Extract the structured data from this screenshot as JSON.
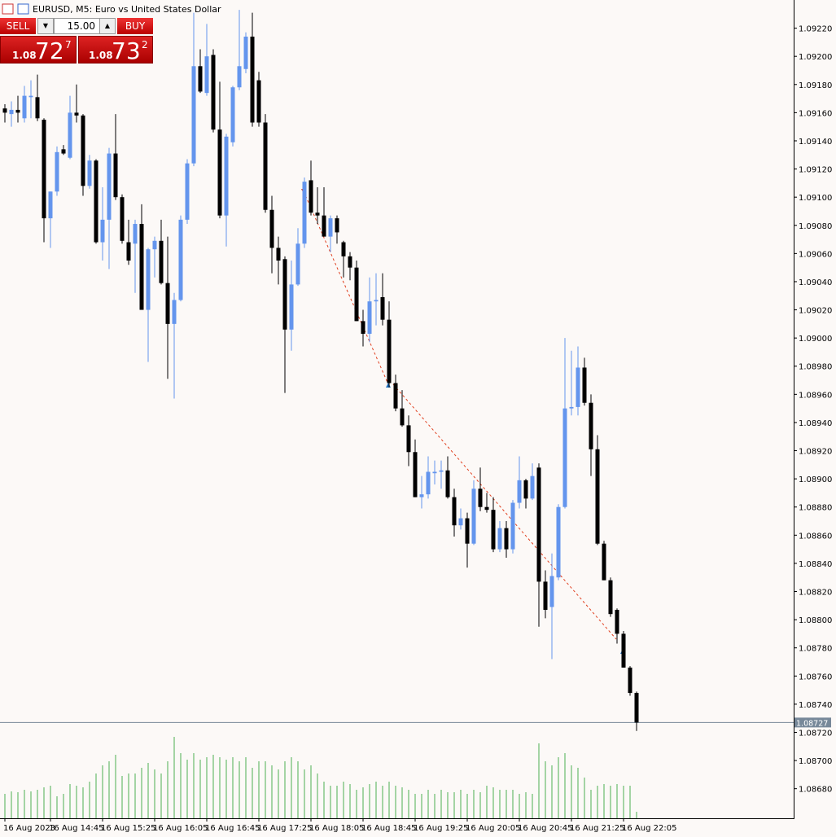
{
  "chart_data": {
    "type": "candlestick",
    "title": "EURUSD, M5:  Euro vs United States Dollar",
    "trade_panel": {
      "sell_label": "SELL",
      "buy_label": "BUY",
      "volume": "15.00",
      "sell_price": {
        "big": "1.08",
        "main": "72",
        "sup": "7"
      },
      "buy_price": {
        "big": "1.08",
        "main": "73",
        "sup": "2"
      }
    },
    "categories": [
      "16 Aug 2023",
      null,
      null,
      null,
      null,
      null,
      null,
      "16 Aug 14:45",
      null,
      null,
      null,
      null,
      null,
      null,
      null,
      "16 Aug 15:25",
      null,
      null,
      null,
      null,
      null,
      null,
      null,
      "16 Aug 16:05",
      null,
      null,
      null,
      null,
      null,
      null,
      null,
      "16 Aug 16:45",
      null,
      null,
      null,
      null,
      null,
      null,
      null,
      "16 Aug 17:25",
      null,
      null,
      null,
      null,
      null,
      null,
      null,
      "16 Aug 18:05",
      null,
      null,
      null,
      null,
      null,
      null,
      null,
      "16 Aug 18:45",
      null,
      null,
      null,
      null,
      null,
      null,
      null,
      "16 Aug 19:25",
      null,
      null,
      null,
      null,
      null,
      null,
      null,
      "16 Aug 20:05",
      null,
      null,
      null,
      null,
      null,
      null,
      null,
      "16 Aug 20:45",
      null,
      null,
      null,
      null,
      null,
      null,
      null,
      "16 Aug 21:25",
      null,
      null,
      null,
      null,
      null,
      null,
      null,
      "16 Aug 22:05",
      null,
      null
    ],
    "open": [
      1.09163,
      1.09159,
      1.09162,
      1.09156,
      1.09171,
      1.09171,
      1.09155,
      1.09085,
      1.09104,
      1.09134,
      1.09128,
      1.0916,
      1.09158,
      1.09108,
      1.09126,
      1.09068,
      1.09084,
      1.09131,
      1.091,
      1.09068,
      1.09067,
      1.09081,
      1.0902,
      1.09063,
      1.09069,
      1.09039,
      1.0901,
      1.09027,
      1.09084,
      1.09124,
      1.09193,
      1.09174,
      1.09201,
      1.09148,
      1.09087,
      1.09139,
      1.09178,
      1.09191,
      1.09214,
      1.09183,
      1.09153,
      1.09091,
      1.09064,
      1.09056,
      1.09006,
      1.09038,
      1.09067,
      1.09112,
      1.09089,
      1.09087,
      1.09072,
      1.09085,
      1.09068,
      1.09058,
      1.0905,
      1.09012,
      1.09003,
      1.09026,
      1.09029,
      1.09013,
      1.08968,
      1.0895,
      1.08938,
      1.08919,
      1.08887,
      1.08889,
      1.08904,
      1.08905,
      1.08906,
      1.08887,
      1.08867,
      1.08872,
      1.08854,
      1.08893,
      1.0888,
      1.08878,
      1.0885,
      1.08865,
      1.0885,
      1.08883,
      1.08899,
      1.08886,
      1.08908,
      1.08827,
      1.08809,
      1.0883,
      1.0888,
      1.0895,
      1.08951,
      1.08979,
      1.08954,
      1.08921,
      1.08854,
      1.08828,
      1.08807,
      1.0879,
      1.08766,
      1.08748
    ],
    "high": [
      1.09166,
      1.09168,
      1.09172,
      1.09179,
      1.09183,
      1.09187,
      1.09156,
      1.09104,
      1.09136,
      1.09137,
      1.09172,
      1.0918,
      1.09159,
      1.0913,
      1.09127,
      1.09107,
      1.09135,
      1.09159,
      1.09102,
      1.09084,
      1.09084,
      1.09095,
      1.09064,
      1.09072,
      1.09084,
      1.09072,
      1.09032,
      1.09087,
      1.09127,
      1.09231,
      1.09205,
      1.09223,
      1.09205,
      1.09182,
      1.09145,
      1.09179,
      1.09233,
      1.09217,
      1.09231,
      1.09189,
      1.09159,
      1.09101,
      1.09072,
      1.09058,
      1.09055,
      1.09078,
      1.09114,
      1.09126,
      1.09107,
      1.09107,
      1.09087,
      1.09087,
      1.09069,
      1.09061,
      1.09055,
      1.0902,
      1.09043,
      1.09046,
      1.09046,
      1.09026,
      1.08974,
      1.08963,
      1.08945,
      1.08928,
      1.08902,
      1.08916,
      1.08913,
      1.08913,
      1.08916,
      1.08893,
      1.08879,
      1.08876,
      1.08899,
      1.08908,
      1.0889,
      1.08887,
      1.0887,
      1.0887,
      1.08885,
      1.08916,
      1.089,
      1.08911,
      1.08911,
      1.08835,
      1.08847,
      1.08882,
      1.09,
      1.08991,
      1.08994,
      1.08986,
      1.0896,
      1.08931,
      1.08856,
      1.0883,
      1.08808,
      1.08792,
      1.08767,
      1.08749
    ],
    "low": [
      1.09153,
      1.0915,
      1.09153,
      1.09153,
      1.09156,
      1.09154,
      1.09068,
      1.09064,
      1.09101,
      1.0913,
      1.09127,
      1.09153,
      1.09101,
      1.09106,
      1.09067,
      1.09055,
      1.09049,
      1.09098,
      1.09067,
      1.09052,
      1.09032,
      1.0902,
      1.08983,
      1.09043,
      1.09038,
      1.08971,
      1.08957,
      1.09026,
      1.09081,
      1.09122,
      1.09174,
      1.09172,
      1.09146,
      1.09085,
      1.09065,
      1.09136,
      1.09176,
      1.09188,
      1.0915,
      1.0915,
      1.09089,
      1.09046,
      1.09038,
      1.08961,
      1.08991,
      1.09037,
      1.09064,
      1.09087,
      1.09081,
      1.09072,
      1.09061,
      1.09067,
      1.09043,
      1.09041,
      1.09012,
      1.08994,
      1.08997,
      1.09009,
      1.09009,
      1.08965,
      1.08948,
      1.08937,
      1.08909,
      1.08887,
      1.08879,
      1.08886,
      1.08896,
      1.08893,
      1.08886,
      1.08859,
      1.08864,
      1.08837,
      1.08853,
      1.08877,
      1.08876,
      1.08848,
      1.08848,
      1.08844,
      1.08847,
      1.08879,
      1.08879,
      1.08885,
      1.08795,
      1.08801,
      1.08772,
      1.08828,
      1.08879,
      1.08945,
      1.08945,
      1.08952,
      1.08902,
      1.08853,
      1.08828,
      1.08802,
      1.08783,
      1.08766,
      1.08746,
      1.08721
    ],
    "close": [
      1.0916,
      1.09162,
      1.0916,
      1.09172,
      1.09172,
      1.09156,
      1.09085,
      1.09104,
      1.09132,
      1.09131,
      1.0916,
      1.09158,
      1.09108,
      1.09126,
      1.09068,
      1.09084,
      1.09131,
      1.091,
      1.09069,
      1.09055,
      1.09081,
      1.0902,
      1.09063,
      1.09069,
      1.09039,
      1.0901,
      1.09027,
      1.09084,
      1.09124,
      1.09193,
      1.09175,
      1.092,
      1.09148,
      1.09087,
      1.09143,
      1.09178,
      1.09193,
      1.09214,
      1.09153,
      1.09153,
      1.09091,
      1.09064,
      1.09055,
      1.09006,
      1.09038,
      1.09067,
      1.09111,
      1.09089,
      1.09087,
      1.09072,
      1.09085,
      1.09075,
      1.09058,
      1.0905,
      1.09012,
      1.09003,
      1.09026,
      1.09027,
      1.09013,
      1.08968,
      1.0895,
      1.08938,
      1.08919,
      1.08887,
      1.08889,
      1.08905,
      1.08905,
      1.08906,
      1.08887,
      1.08867,
      1.08872,
      1.08854,
      1.08893,
      1.0888,
      1.08878,
      1.0885,
      1.08865,
      1.0885,
      1.08883,
      1.08899,
      1.08886,
      1.08902,
      1.08827,
      1.08807,
      1.08831,
      1.0888,
      1.0895,
      1.08951,
      1.08979,
      1.08954,
      1.08921,
      1.08854,
      1.08828,
      1.08804,
      1.0879,
      1.08766,
      1.08748,
      1.08727
    ],
    "volumes": [
      30,
      33,
      32,
      35,
      33,
      35,
      38,
      40,
      27,
      30,
      42,
      40,
      38,
      45,
      55,
      65,
      70,
      78,
      52,
      55,
      55,
      62,
      68,
      60,
      55,
      70,
      100,
      80,
      72,
      80,
      72,
      75,
      78,
      75,
      72,
      75,
      70,
      75,
      62,
      70,
      70,
      65,
      60,
      70,
      75,
      70,
      60,
      65,
      55,
      45,
      40,
      40,
      45,
      42,
      35,
      38,
      42,
      45,
      40,
      45,
      40,
      38,
      35,
      30,
      30,
      35,
      30,
      35,
      32,
      32,
      35,
      30,
      35,
      32,
      40,
      38,
      35,
      35,
      35,
      30,
      32,
      30,
      92,
      70,
      65,
      75,
      80,
      65,
      62,
      50,
      35,
      40,
      42,
      40,
      42,
      40,
      40,
      8
    ],
    "up_color": "#6495ed",
    "down_color": "#000000",
    "volume_color": "#4caf50",
    "current_price": 1.08727,
    "ylim": [
      1.08659,
      1.0924
    ],
    "yticks": [
      {
        "value": 1.0922,
        "label": "1.09220"
      },
      {
        "value": 1.092,
        "label": "1.09200"
      },
      {
        "value": 1.0918,
        "label": "1.09180"
      },
      {
        "value": 1.0916,
        "label": "1.09160"
      },
      {
        "value": 1.0914,
        "label": "1.09140"
      },
      {
        "value": 1.0912,
        "label": "1.09120"
      },
      {
        "value": 1.091,
        "label": "1.09100"
      },
      {
        "value": 1.0908,
        "label": "1.09080"
      },
      {
        "value": 1.0906,
        "label": "1.09060"
      },
      {
        "value": 1.0904,
        "label": "1.09040"
      },
      {
        "value": 1.0902,
        "label": "1.09020"
      },
      {
        "value": 1.09,
        "label": "1.09000"
      },
      {
        "value": 1.0898,
        "label": "1.08980"
      },
      {
        "value": 1.0896,
        "label": "1.08960"
      },
      {
        "value": 1.0894,
        "label": "1.08940"
      },
      {
        "value": 1.0892,
        "label": "1.08920"
      },
      {
        "value": 1.089,
        "label": "1.08900"
      },
      {
        "value": 1.0888,
        "label": "1.08880"
      },
      {
        "value": 1.0886,
        "label": "1.08860"
      },
      {
        "value": 1.0884,
        "label": "1.08840"
      },
      {
        "value": 1.0882,
        "label": "1.08820"
      },
      {
        "value": 1.088,
        "label": "1.08800"
      },
      {
        "value": 1.0878,
        "label": "1.08780"
      },
      {
        "value": 1.0876,
        "label": "1.08760"
      },
      {
        "value": 1.0874,
        "label": "1.08740"
      },
      {
        "value": 1.0872,
        "label": "1.08720"
      },
      {
        "value": 1.087,
        "label": "1.08700"
      },
      {
        "value": 1.0868,
        "label": "1.08680"
      }
    ],
    "grid": false
  }
}
